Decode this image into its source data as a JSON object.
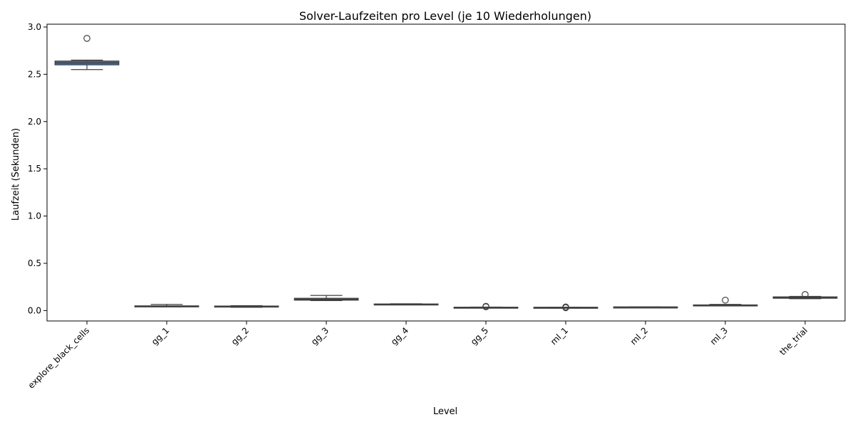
{
  "chart_data": {
    "type": "box",
    "title": "Solver-Laufzeiten pro Level (je 10 Wiederholungen)",
    "xlabel": "Level",
    "ylabel": "Laufzeit (Sekunden)",
    "ylim": [
      -0.11,
      3.03
    ],
    "yticks": [
      0.0,
      0.5,
      1.0,
      1.5,
      2.0,
      2.5,
      3.0
    ],
    "ytick_labels": [
      "0.0",
      "0.5",
      "1.0",
      "1.5",
      "2.0",
      "2.5",
      "3.0"
    ],
    "box_color": "#4c72b0",
    "line_color": "#3f3f3f",
    "categories": [
      "explore_black_cells",
      "gg_1",
      "gg_2",
      "gg_3",
      "gg_4",
      "gg_5",
      "ml_1",
      "ml_2",
      "ml_3",
      "the_trial"
    ],
    "boxes": [
      {
        "whislo": 2.55,
        "q1": 2.6,
        "med": 2.62,
        "q3": 2.64,
        "whishi": 2.65,
        "fliers": [
          2.88
        ]
      },
      {
        "whislo": 0.04,
        "q1": 0.043,
        "med": 0.045,
        "q3": 0.05,
        "whishi": 0.065,
        "fliers": []
      },
      {
        "whislo": 0.035,
        "q1": 0.04,
        "med": 0.043,
        "q3": 0.048,
        "whishi": 0.052,
        "fliers": []
      },
      {
        "whislo": 0.105,
        "q1": 0.11,
        "med": 0.12,
        "q3": 0.13,
        "whishi": 0.16,
        "fliers": []
      },
      {
        "whislo": 0.06,
        "q1": 0.065,
        "med": 0.068,
        "q3": 0.07,
        "whishi": 0.072,
        "fliers": []
      },
      {
        "whislo": 0.033,
        "q1": 0.034,
        "med": 0.035,
        "q3": 0.036,
        "whishi": 0.037,
        "fliers": [
          0.04,
          0.045
        ]
      },
      {
        "whislo": 0.032,
        "q1": 0.033,
        "med": 0.034,
        "q3": 0.035,
        "whishi": 0.036,
        "fliers": [
          0.03,
          0.038
        ]
      },
      {
        "whislo": 0.034,
        "q1": 0.036,
        "med": 0.037,
        "q3": 0.038,
        "whishi": 0.04,
        "fliers": []
      },
      {
        "whislo": 0.05,
        "q1": 0.052,
        "med": 0.055,
        "q3": 0.06,
        "whishi": 0.065,
        "fliers": [
          0.11
        ]
      },
      {
        "whislo": 0.125,
        "q1": 0.13,
        "med": 0.14,
        "q3": 0.145,
        "whishi": 0.15,
        "fliers": [
          0.17
        ]
      }
    ]
  }
}
